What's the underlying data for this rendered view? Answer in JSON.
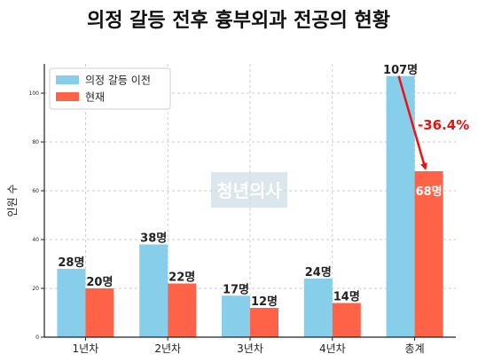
{
  "chart_data": {
    "type": "bar",
    "title": "의정 갈등 전후 흉부외과 전공의 현황",
    "ylabel": "인원 수",
    "xlabel": "",
    "categories": [
      "1년차",
      "2년차",
      "3년차",
      "4년차",
      "총계"
    ],
    "series": [
      {
        "name": "의정 갈등 이전",
        "values": [
          28,
          38,
          17,
          24,
          107
        ],
        "labels": [
          "28명",
          "38명",
          "17명",
          "24명",
          "107명"
        ],
        "color": "#87CEEB"
      },
      {
        "name": "현재",
        "values": [
          20,
          22,
          12,
          14,
          68
        ],
        "labels": [
          "20명",
          "22명",
          "12명",
          "14명",
          "68명"
        ],
        "color": "#FF6347"
      }
    ],
    "ylim": [
      0,
      112
    ],
    "yticks": [
      0,
      20,
      40,
      60,
      80,
      100
    ],
    "grid": true,
    "legend_position": "top-left",
    "annotation": {
      "text": "-36.4%",
      "color": "#EE1111",
      "from_category": "총계"
    },
    "watermark": "청년의사"
  }
}
